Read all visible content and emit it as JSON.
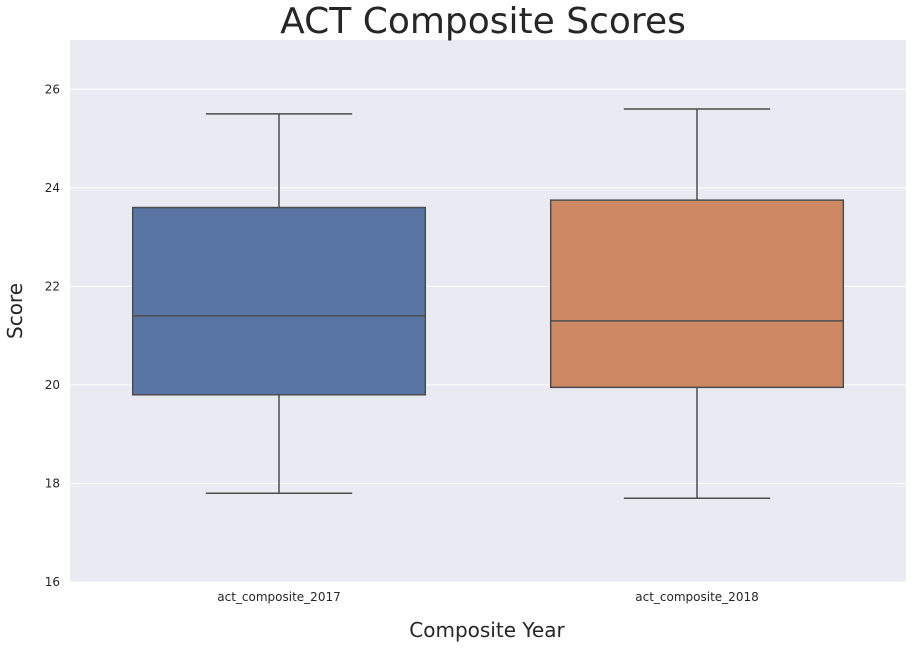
{
  "chart_data": {
    "type": "box",
    "title": "ACT Composite Scores",
    "xlabel": "Composite Year",
    "ylabel": "Score",
    "categories": [
      "act_composite_2017",
      "act_composite_2018"
    ],
    "ylim": [
      16,
      27
    ],
    "yticks": [
      "16",
      "18",
      "20",
      "22",
      "24",
      "26"
    ],
    "grid": true,
    "background_color": "#eaeaf2",
    "grid_color": "#ffffff",
    "line_color": "#4d4d4d",
    "series": [
      {
        "category": "act_composite_2017",
        "color": "#5875a4",
        "whisker_low": 17.8,
        "q1": 19.8,
        "median": 21.4,
        "q3": 23.6,
        "whisker_high": 25.5
      },
      {
        "category": "act_composite_2018",
        "color": "#cc8963",
        "whisker_low": 17.7,
        "q1": 19.95,
        "median": 21.3,
        "q3": 23.75,
        "whisker_high": 25.6
      }
    ]
  }
}
